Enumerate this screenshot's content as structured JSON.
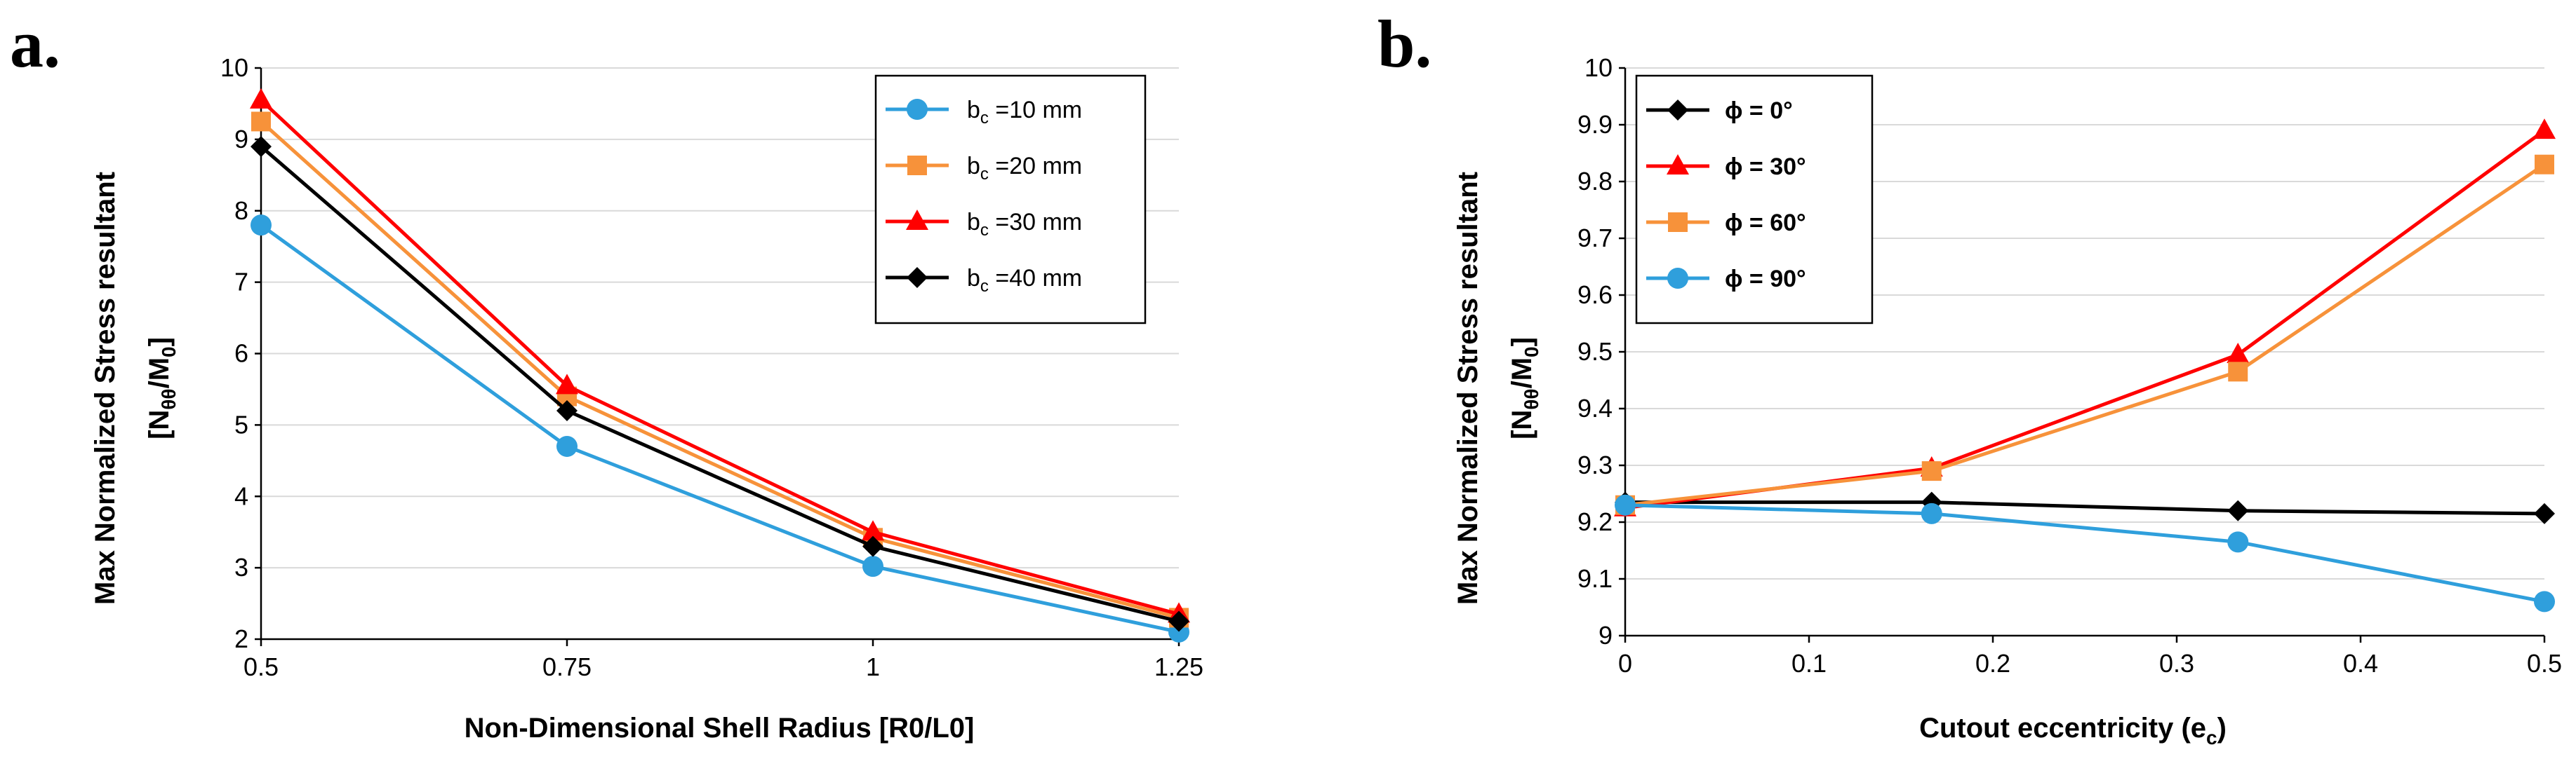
{
  "chart_data": [
    {
      "panel": "a.",
      "type": "line",
      "title": "",
      "xlabel": "Non-Dimensional Shell Radius [R0/L0]",
      "ylabel_line1": "Max Normalized Stress resultant",
      "ylabel_line2": "[Nθθ/M0]",
      "x": [
        0.5,
        0.75,
        1,
        1.25
      ],
      "xticks": [
        "0.5",
        "0.75",
        "1",
        "1.25"
      ],
      "xlim": [
        0.5,
        1.25
      ],
      "ylim": [
        2,
        10
      ],
      "yticks": [
        "2",
        "3",
        "4",
        "5",
        "6",
        "7",
        "8",
        "9",
        "10"
      ],
      "grid": "horizontal",
      "legend_position": "top-right",
      "series": [
        {
          "name": "bc =10 mm",
          "label_main": "b",
          "label_sub": "c",
          "label_rest": " =10 mm",
          "color": "#2f9fdc",
          "marker": "circle",
          "values": [
            7.8,
            4.7,
            3.02,
            2.1
          ]
        },
        {
          "name": "bc =20 mm",
          "label_main": "b",
          "label_sub": "c",
          "label_rest": " =20 mm",
          "color": "#f7923a",
          "marker": "square",
          "values": [
            9.25,
            5.4,
            3.42,
            2.3
          ]
        },
        {
          "name": "bc =30 mm",
          "label_main": "b",
          "label_sub": "c",
          "label_rest": " =30 mm",
          "color": "#ff0000",
          "marker": "triangle",
          "values": [
            9.55,
            5.55,
            3.5,
            2.35
          ]
        },
        {
          "name": "bc =40 mm",
          "label_main": "b",
          "label_sub": "c",
          "label_rest": " =40 mm",
          "color": "#000000",
          "marker": "diamond",
          "values": [
            8.9,
            5.2,
            3.3,
            2.25
          ]
        }
      ]
    },
    {
      "panel": "b.",
      "type": "line",
      "title": "",
      "xlabel": "Cutout eccentricity (ec)",
      "ylabel_line1": "Max Normalized Stress resultant",
      "ylabel_line2": "[Nθθ/M0]",
      "x": [
        0,
        0.1667,
        0.3333,
        0.5
      ],
      "xticks": [
        "0",
        "0.1",
        "0.2",
        "0.3",
        "0.4",
        "0.5"
      ],
      "xlim": [
        0,
        0.5
      ],
      "ylim": [
        9,
        10
      ],
      "yticks": [
        "9",
        "9.1",
        "9.2",
        "9.3",
        "9.4",
        "9.5",
        "9.6",
        "9.7",
        "9.8",
        "9.9",
        "10"
      ],
      "grid": "horizontal",
      "legend_position": "top-left",
      "series": [
        {
          "name": "ϕ = 0°",
          "label": "ϕ = 0°",
          "color": "#000000",
          "marker": "diamond",
          "values": [
            9.235,
            9.235,
            9.22,
            9.215
          ]
        },
        {
          "name": "ϕ = 30°",
          "label": "ϕ = 30°",
          "color": "#ff0000",
          "marker": "triangle",
          "values": [
            9.225,
            9.295,
            9.495,
            9.89
          ]
        },
        {
          "name": "ϕ = 60°",
          "label": "ϕ = 60°",
          "color": "#f7923a",
          "marker": "square",
          "values": [
            9.23,
            9.29,
            9.465,
            9.83
          ]
        },
        {
          "name": "ϕ = 90°",
          "label": "ϕ = 90°",
          "color": "#2f9fdc",
          "marker": "circle",
          "values": [
            9.23,
            9.215,
            9.165,
            9.06
          ]
        }
      ]
    }
  ]
}
